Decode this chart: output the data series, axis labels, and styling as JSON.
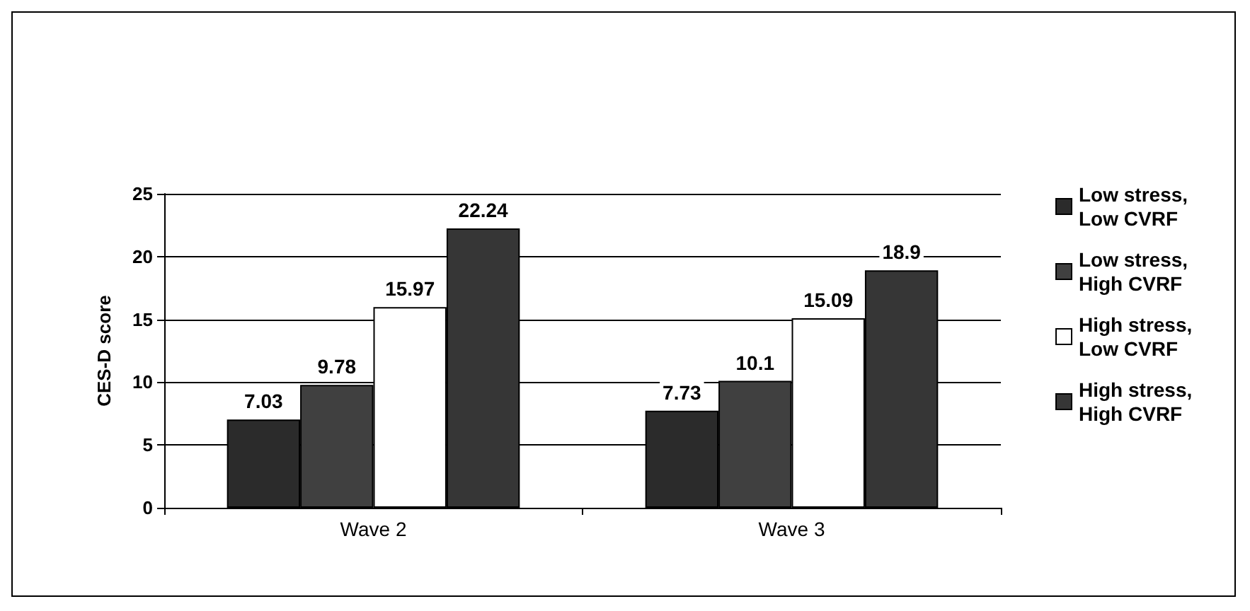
{
  "chart_data": {
    "type": "bar",
    "ylabel": "CES-D score",
    "categories": [
      "Wave 2",
      "Wave 3"
    ],
    "series": [
      {
        "name": "Low stress, Low CVRF",
        "color": "#2b2b2b",
        "values": [
          7.03,
          7.73
        ]
      },
      {
        "name": "Low stress, High CVRF",
        "color": "#404040",
        "values": [
          9.78,
          10.1
        ]
      },
      {
        "name": "High stress, Low CVRF",
        "color": "#ffffff",
        "values": [
          15.97,
          15.09
        ]
      },
      {
        "name": "High stress, High CVRF",
        "color": "#363636",
        "values": [
          22.24,
          18.9
        ]
      }
    ],
    "ylim": [
      0,
      25
    ],
    "yticks": [
      0,
      5,
      10,
      15,
      20,
      25
    ],
    "grid": "y",
    "legend": "right",
    "data_labels": true
  }
}
